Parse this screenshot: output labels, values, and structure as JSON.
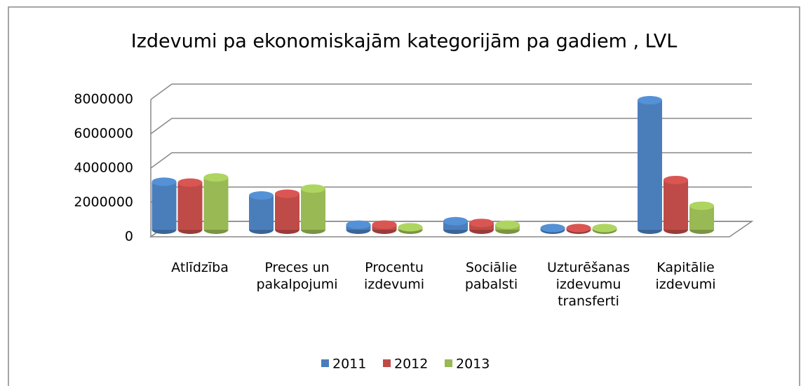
{
  "chart_data": {
    "type": "bar3d",
    "title": "Izdevumi pa ekonomiskajām kategorijām pa gadiem , LVL",
    "categories": [
      "Atlīdzība",
      "Preces un pakalpojumi",
      "Procentu izdevumi",
      "Sociālie pabalsti",
      "Uzturēšanas izdevumu transferti",
      "Kapitālie izdevumi"
    ],
    "series": [
      {
        "name": "2011",
        "color": "#4a7ebb",
        "values": [
          2800000,
          2000000,
          300000,
          500000,
          100000,
          7550000
        ]
      },
      {
        "name": "2012",
        "color": "#be4b48",
        "values": [
          2750000,
          2100000,
          300000,
          400000,
          100000,
          2900000
        ]
      },
      {
        "name": "2013",
        "color": "#98b954",
        "values": [
          3050000,
          2400000,
          150000,
          300000,
          100000,
          1400000
        ]
      }
    ],
    "ylim": [
      0,
      8000000
    ],
    "yticks": [
      0,
      2000000,
      4000000,
      6000000,
      8000000
    ],
    "grid": true,
    "legend": "bottom"
  }
}
